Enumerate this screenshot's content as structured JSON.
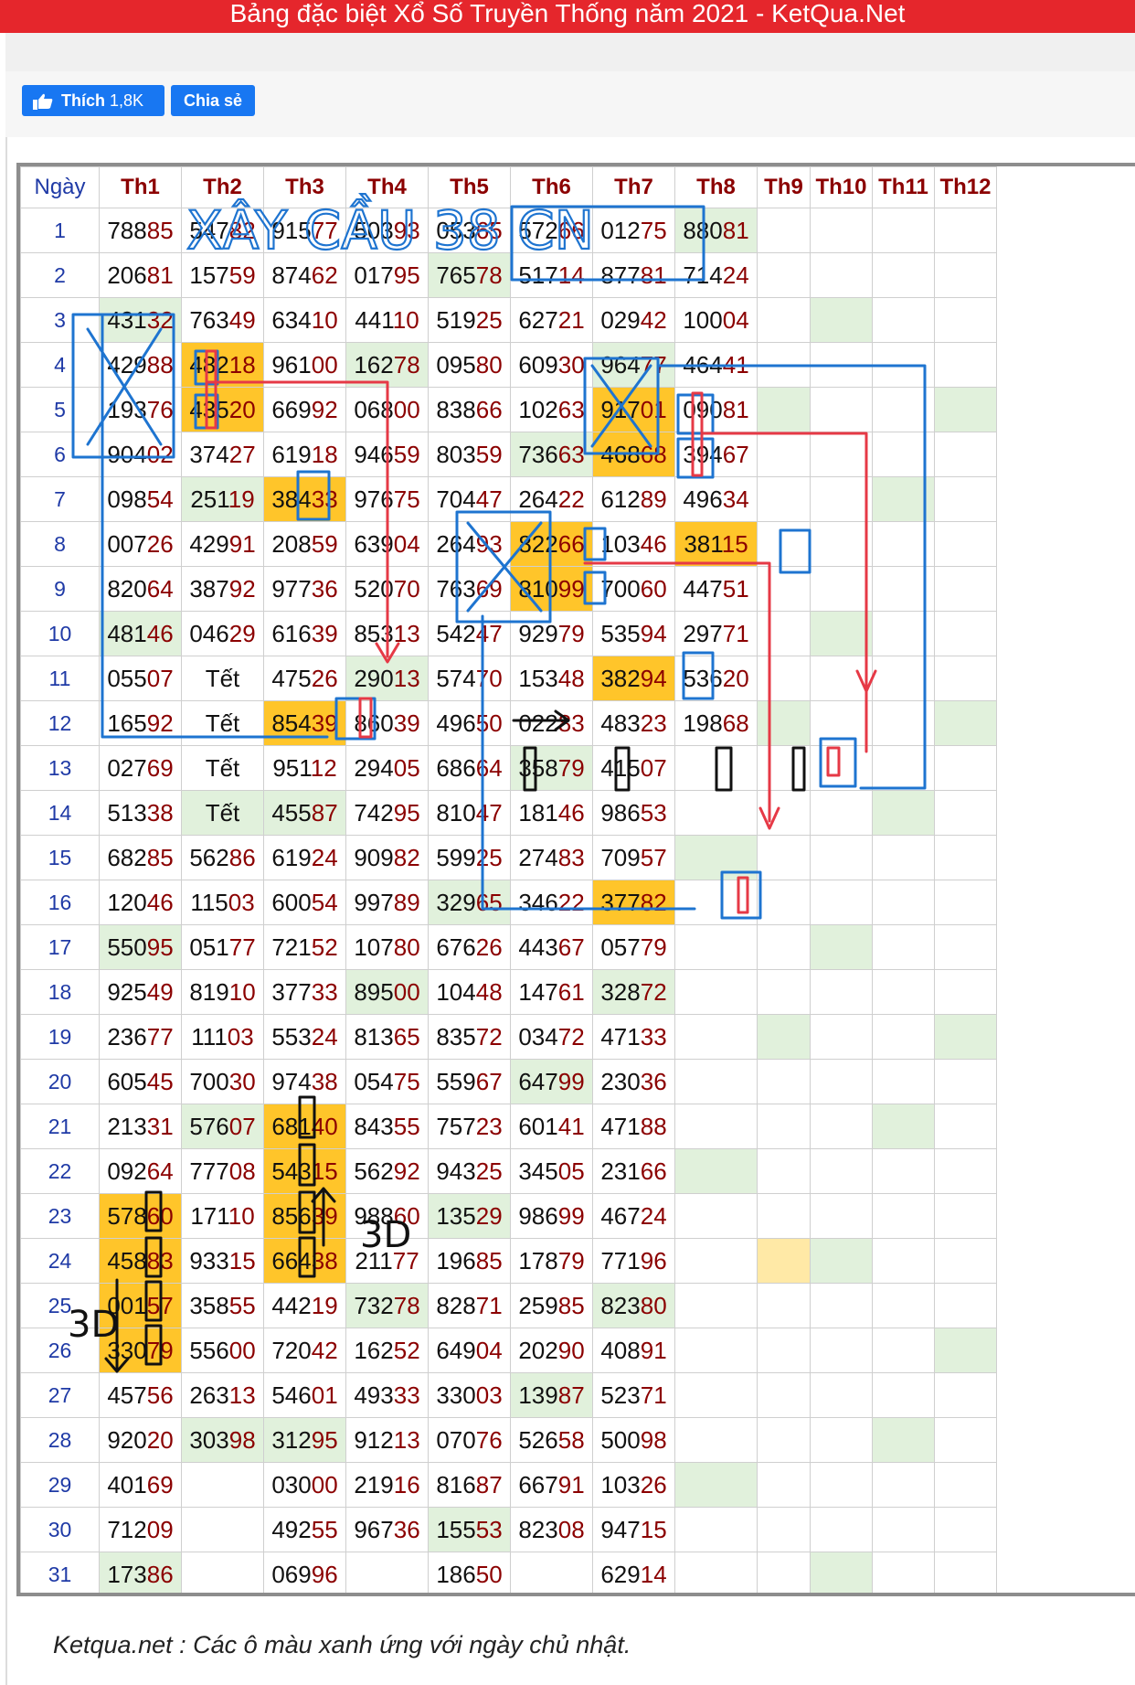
{
  "page": {
    "title": "Bảng đặc biệt Xổ Số Truyền Thống năm 2021 - KetQua.Net"
  },
  "social": {
    "like_label": "Thích",
    "like_count": "1,8K",
    "share_label": "Chia sẻ"
  },
  "table": {
    "headers": [
      "Ngày",
      "Th1",
      "Th2",
      "Th3",
      "Th4",
      "Th5",
      "Th6",
      "Th7",
      "Th8",
      "Th9",
      "Th10",
      "Th11",
      "Th12"
    ],
    "col_widths": [
      86,
      90,
      90,
      90,
      90,
      90,
      90,
      90,
      90,
      58,
      68,
      68,
      68
    ],
    "rows": [
      [
        {
          "v": "1"
        },
        {
          "v": "78885"
        },
        {
          "v": "54782"
        },
        {
          "v": "91577"
        },
        {
          "v": "50393"
        },
        {
          "v": "05365"
        },
        {
          "v": "57266"
        },
        {
          "v": "01275"
        },
        {
          "v": "88081",
          "bg": "g"
        },
        {
          "v": ""
        },
        {
          "v": ""
        },
        {
          "v": ""
        },
        {
          "v": ""
        }
      ],
      [
        {
          "v": "2"
        },
        {
          "v": "20681"
        },
        {
          "v": "15759"
        },
        {
          "v": "87462"
        },
        {
          "v": "01795"
        },
        {
          "v": "76578",
          "bg": "g"
        },
        {
          "v": "51714"
        },
        {
          "v": "87781"
        },
        {
          "v": "71424"
        },
        {
          "v": ""
        },
        {
          "v": ""
        },
        {
          "v": ""
        },
        {
          "v": ""
        }
      ],
      [
        {
          "v": "3"
        },
        {
          "v": "43132",
          "bg": "g"
        },
        {
          "v": "76349"
        },
        {
          "v": "63410"
        },
        {
          "v": "44110"
        },
        {
          "v": "51925"
        },
        {
          "v": "62721"
        },
        {
          "v": "02942"
        },
        {
          "v": "10004"
        },
        {
          "v": ""
        },
        {
          "v": "",
          "bg": "g"
        },
        {
          "v": ""
        },
        {
          "v": ""
        }
      ],
      [
        {
          "v": "4"
        },
        {
          "v": "42988"
        },
        {
          "v": "48218",
          "bg": "o"
        },
        {
          "v": "96100"
        },
        {
          "v": "16278",
          "bg": "g"
        },
        {
          "v": "09580"
        },
        {
          "v": "60930"
        },
        {
          "v": "96477",
          "bg": "g"
        },
        {
          "v": "46441"
        },
        {
          "v": ""
        },
        {
          "v": ""
        },
        {
          "v": ""
        },
        {
          "v": ""
        }
      ],
      [
        {
          "v": "5"
        },
        {
          "v": "19376"
        },
        {
          "v": "43520",
          "bg": "o"
        },
        {
          "v": "66992"
        },
        {
          "v": "06800"
        },
        {
          "v": "83866"
        },
        {
          "v": "10263"
        },
        {
          "v": "91701",
          "bg": "o"
        },
        {
          "v": "09081"
        },
        {
          "v": "",
          "bg": "g"
        },
        {
          "v": ""
        },
        {
          "v": ""
        },
        {
          "v": "",
          "bg": "g"
        }
      ],
      [
        {
          "v": "6"
        },
        {
          "v": "90402"
        },
        {
          "v": "37427"
        },
        {
          "v": "61918"
        },
        {
          "v": "94659"
        },
        {
          "v": "80359"
        },
        {
          "v": "73663",
          "bg": "g"
        },
        {
          "v": "46868",
          "bg": "o"
        },
        {
          "v": "39467"
        },
        {
          "v": ""
        },
        {
          "v": ""
        },
        {
          "v": ""
        },
        {
          "v": ""
        }
      ],
      [
        {
          "v": "7"
        },
        {
          "v": "09854"
        },
        {
          "v": "25119",
          "bg": "g"
        },
        {
          "v": "38433",
          "bg": "o"
        },
        {
          "v": "97675"
        },
        {
          "v": "70447"
        },
        {
          "v": "26422"
        },
        {
          "v": "61289"
        },
        {
          "v": "49634"
        },
        {
          "v": ""
        },
        {
          "v": ""
        },
        {
          "v": "",
          "bg": "g"
        },
        {
          "v": ""
        }
      ],
      [
        {
          "v": "8"
        },
        {
          "v": "00726"
        },
        {
          "v": "42991"
        },
        {
          "v": "20859"
        },
        {
          "v": "63904"
        },
        {
          "v": "26493"
        },
        {
          "v": "82266",
          "bg": "o"
        },
        {
          "v": "10346"
        },
        {
          "v": "38115",
          "bg": "o"
        },
        {
          "v": ""
        },
        {
          "v": ""
        },
        {
          "v": ""
        },
        {
          "v": ""
        }
      ],
      [
        {
          "v": "9"
        },
        {
          "v": "82064"
        },
        {
          "v": "38792"
        },
        {
          "v": "97736"
        },
        {
          "v": "52070"
        },
        {
          "v": "76369"
        },
        {
          "v": "81099",
          "bg": "o"
        },
        {
          "v": "70060"
        },
        {
          "v": "44751"
        },
        {
          "v": ""
        },
        {
          "v": ""
        },
        {
          "v": ""
        },
        {
          "v": ""
        }
      ],
      [
        {
          "v": "10"
        },
        {
          "v": "48146",
          "bg": "g"
        },
        {
          "v": "04629"
        },
        {
          "v": "61639"
        },
        {
          "v": "85313"
        },
        {
          "v": "54247"
        },
        {
          "v": "92979"
        },
        {
          "v": "53594"
        },
        {
          "v": "29771"
        },
        {
          "v": ""
        },
        {
          "v": "",
          "bg": "g"
        },
        {
          "v": ""
        },
        {
          "v": ""
        }
      ],
      [
        {
          "v": "11"
        },
        {
          "v": "05507"
        },
        {
          "v": "Tết",
          "t": 1
        },
        {
          "v": "47526"
        },
        {
          "v": "29013",
          "bg": "g"
        },
        {
          "v": "57470"
        },
        {
          "v": "15348"
        },
        {
          "v": "38294",
          "bg": "o"
        },
        {
          "v": "53620"
        },
        {
          "v": ""
        },
        {
          "v": ""
        },
        {
          "v": ""
        },
        {
          "v": ""
        }
      ],
      [
        {
          "v": "12"
        },
        {
          "v": "16592"
        },
        {
          "v": "Tết",
          "t": 1
        },
        {
          "v": "85439",
          "bg": "o"
        },
        {
          "v": "86039"
        },
        {
          "v": "49650"
        },
        {
          "v": "02283"
        },
        {
          "v": "48323"
        },
        {
          "v": "19868"
        },
        {
          "v": "",
          "bg": "g"
        },
        {
          "v": ""
        },
        {
          "v": ""
        },
        {
          "v": "",
          "bg": "g"
        }
      ],
      [
        {
          "v": "13"
        },
        {
          "v": "02769"
        },
        {
          "v": "Tết",
          "t": 1
        },
        {
          "v": "95112"
        },
        {
          "v": "29405"
        },
        {
          "v": "68664"
        },
        {
          "v": "35879",
          "bg": "g"
        },
        {
          "v": "41507"
        },
        {
          "v": ""
        },
        {
          "v": ""
        },
        {
          "v": ""
        },
        {
          "v": ""
        },
        {
          "v": ""
        }
      ],
      [
        {
          "v": "14"
        },
        {
          "v": "51338"
        },
        {
          "v": "Tết",
          "t": 1,
          "bg": "g"
        },
        {
          "v": "45587",
          "bg": "g"
        },
        {
          "v": "74295"
        },
        {
          "v": "81047"
        },
        {
          "v": "18146"
        },
        {
          "v": "98653"
        },
        {
          "v": ""
        },
        {
          "v": ""
        },
        {
          "v": ""
        },
        {
          "v": "",
          "bg": "g"
        },
        {
          "v": ""
        }
      ],
      [
        {
          "v": "15"
        },
        {
          "v": "68285"
        },
        {
          "v": "56286"
        },
        {
          "v": "61924"
        },
        {
          "v": "90982"
        },
        {
          "v": "59925"
        },
        {
          "v": "27483"
        },
        {
          "v": "70957"
        },
        {
          "v": "",
          "bg": "g"
        },
        {
          "v": ""
        },
        {
          "v": ""
        },
        {
          "v": ""
        },
        {
          "v": ""
        }
      ],
      [
        {
          "v": "16"
        },
        {
          "v": "12046"
        },
        {
          "v": "11503"
        },
        {
          "v": "60054"
        },
        {
          "v": "99789"
        },
        {
          "v": "32965",
          "bg": "g"
        },
        {
          "v": "34622"
        },
        {
          "v": "37782",
          "bg": "o"
        },
        {
          "v": ""
        },
        {
          "v": ""
        },
        {
          "v": ""
        },
        {
          "v": ""
        },
        {
          "v": ""
        }
      ],
      [
        {
          "v": "17"
        },
        {
          "v": "55095",
          "bg": "g"
        },
        {
          "v": "05177"
        },
        {
          "v": "72152"
        },
        {
          "v": "10780"
        },
        {
          "v": "67626"
        },
        {
          "v": "44367"
        },
        {
          "v": "05779"
        },
        {
          "v": ""
        },
        {
          "v": ""
        },
        {
          "v": "",
          "bg": "g"
        },
        {
          "v": ""
        },
        {
          "v": ""
        }
      ],
      [
        {
          "v": "18"
        },
        {
          "v": "92549"
        },
        {
          "v": "81910"
        },
        {
          "v": "37733"
        },
        {
          "v": "89500",
          "bg": "g"
        },
        {
          "v": "10448"
        },
        {
          "v": "14761"
        },
        {
          "v": "32872",
          "bg": "g"
        },
        {
          "v": ""
        },
        {
          "v": ""
        },
        {
          "v": ""
        },
        {
          "v": ""
        },
        {
          "v": ""
        }
      ],
      [
        {
          "v": "19"
        },
        {
          "v": "23677"
        },
        {
          "v": "11103"
        },
        {
          "v": "55324"
        },
        {
          "v": "81365"
        },
        {
          "v": "83572"
        },
        {
          "v": "03472"
        },
        {
          "v": "47133"
        },
        {
          "v": ""
        },
        {
          "v": "",
          "bg": "g"
        },
        {
          "v": ""
        },
        {
          "v": ""
        },
        {
          "v": "",
          "bg": "g"
        }
      ],
      [
        {
          "v": "20"
        },
        {
          "v": "60545"
        },
        {
          "v": "70030"
        },
        {
          "v": "97438"
        },
        {
          "v": "05475"
        },
        {
          "v": "55967"
        },
        {
          "v": "64799",
          "bg": "g"
        },
        {
          "v": "23036"
        },
        {
          "v": ""
        },
        {
          "v": ""
        },
        {
          "v": ""
        },
        {
          "v": ""
        },
        {
          "v": ""
        }
      ],
      [
        {
          "v": "21"
        },
        {
          "v": "21331"
        },
        {
          "v": "57607",
          "bg": "g"
        },
        {
          "v": "68140",
          "bg": "o"
        },
        {
          "v": "84355"
        },
        {
          "v": "75723"
        },
        {
          "v": "60141"
        },
        {
          "v": "47188"
        },
        {
          "v": ""
        },
        {
          "v": ""
        },
        {
          "v": ""
        },
        {
          "v": "",
          "bg": "g"
        },
        {
          "v": ""
        }
      ],
      [
        {
          "v": "22"
        },
        {
          "v": "09264"
        },
        {
          "v": "77708"
        },
        {
          "v": "54315",
          "bg": "o"
        },
        {
          "v": "56292"
        },
        {
          "v": "94325"
        },
        {
          "v": "34505"
        },
        {
          "v": "23166"
        },
        {
          "v": "",
          "bg": "g"
        },
        {
          "v": ""
        },
        {
          "v": ""
        },
        {
          "v": ""
        },
        {
          "v": ""
        }
      ],
      [
        {
          "v": "23"
        },
        {
          "v": "57860",
          "bg": "o"
        },
        {
          "v": "17110"
        },
        {
          "v": "85639",
          "bg": "o"
        },
        {
          "v": "98860"
        },
        {
          "v": "13529",
          "bg": "g"
        },
        {
          "v": "98699"
        },
        {
          "v": "46724"
        },
        {
          "v": ""
        },
        {
          "v": ""
        },
        {
          "v": ""
        },
        {
          "v": ""
        },
        {
          "v": ""
        }
      ],
      [
        {
          "v": "24"
        },
        {
          "v": "45883",
          "bg": "o"
        },
        {
          "v": "93315"
        },
        {
          "v": "66438",
          "bg": "o"
        },
        {
          "v": "21177"
        },
        {
          "v": "19685"
        },
        {
          "v": "17879"
        },
        {
          "v": "77196"
        },
        {
          "v": ""
        },
        {
          "v": "",
          "bg": "y"
        },
        {
          "v": "",
          "bg": "g"
        },
        {
          "v": ""
        },
        {
          "v": ""
        }
      ],
      [
        {
          "v": "25"
        },
        {
          "v": "00157",
          "bg": "o"
        },
        {
          "v": "35855"
        },
        {
          "v": "44219"
        },
        {
          "v": "73278",
          "bg": "g"
        },
        {
          "v": "82871"
        },
        {
          "v": "25985"
        },
        {
          "v": "82380",
          "bg": "g"
        },
        {
          "v": ""
        },
        {
          "v": ""
        },
        {
          "v": ""
        },
        {
          "v": ""
        },
        {
          "v": ""
        }
      ],
      [
        {
          "v": "26"
        },
        {
          "v": "33079",
          "bg": "o"
        },
        {
          "v": "55600"
        },
        {
          "v": "72042"
        },
        {
          "v": "16252"
        },
        {
          "v": "64904"
        },
        {
          "v": "20290"
        },
        {
          "v": "40891"
        },
        {
          "v": ""
        },
        {
          "v": ""
        },
        {
          "v": ""
        },
        {
          "v": ""
        },
        {
          "v": "",
          "bg": "g"
        }
      ],
      [
        {
          "v": "27"
        },
        {
          "v": "45756"
        },
        {
          "v": "26313"
        },
        {
          "v": "54601"
        },
        {
          "v": "49333"
        },
        {
          "v": "33003"
        },
        {
          "v": "13987",
          "bg": "g"
        },
        {
          "v": "52371"
        },
        {
          "v": ""
        },
        {
          "v": ""
        },
        {
          "v": ""
        },
        {
          "v": ""
        },
        {
          "v": ""
        }
      ],
      [
        {
          "v": "28"
        },
        {
          "v": "92020"
        },
        {
          "v": "30398",
          "bg": "g"
        },
        {
          "v": "31295",
          "bg": "g"
        },
        {
          "v": "91213"
        },
        {
          "v": "07076"
        },
        {
          "v": "52658"
        },
        {
          "v": "50098"
        },
        {
          "v": ""
        },
        {
          "v": ""
        },
        {
          "v": ""
        },
        {
          "v": "",
          "bg": "g"
        },
        {
          "v": ""
        }
      ],
      [
        {
          "v": "29"
        },
        {
          "v": "40169"
        },
        {
          "v": ""
        },
        {
          "v": "03000"
        },
        {
          "v": "21916"
        },
        {
          "v": "81687"
        },
        {
          "v": "66791"
        },
        {
          "v": "10326"
        },
        {
          "v": "",
          "bg": "g"
        },
        {
          "v": ""
        },
        {
          "v": ""
        },
        {
          "v": ""
        },
        {
          "v": ""
        }
      ],
      [
        {
          "v": "30"
        },
        {
          "v": "71209"
        },
        {
          "v": ""
        },
        {
          "v": "49255"
        },
        {
          "v": "96736"
        },
        {
          "v": "15553",
          "bg": "g"
        },
        {
          "v": "82308"
        },
        {
          "v": "94715"
        },
        {
          "v": ""
        },
        {
          "v": ""
        },
        {
          "v": ""
        },
        {
          "v": ""
        },
        {
          "v": ""
        }
      ],
      [
        {
          "v": "31"
        },
        {
          "v": "17386",
          "bg": "g"
        },
        {
          "v": ""
        },
        {
          "v": "06996"
        },
        {
          "v": ""
        },
        {
          "v": "18650"
        },
        {
          "v": ""
        },
        {
          "v": "62914"
        },
        {
          "v": ""
        },
        {
          "v": ""
        },
        {
          "v": "",
          "bg": "g"
        },
        {
          "v": ""
        },
        {
          "v": ""
        }
      ]
    ]
  },
  "annotations": {
    "title_text": "XÂY CẦU 38 CN",
    "label_3d_a": "3D",
    "label_3d_b": "3D",
    "colors": {
      "blue": "#1e74d0",
      "red": "#e63946",
      "black": "#111111"
    }
  },
  "footer": {
    "note": "Ketqua.net : Các ô màu xanh ứng với ngày chủ nhật."
  },
  "colors": {
    "header_bar": "#e5262c",
    "sunday_green": "#e1f1dc",
    "highlight_orange": "#ffc52a",
    "button_blue": "#1877f2"
  }
}
